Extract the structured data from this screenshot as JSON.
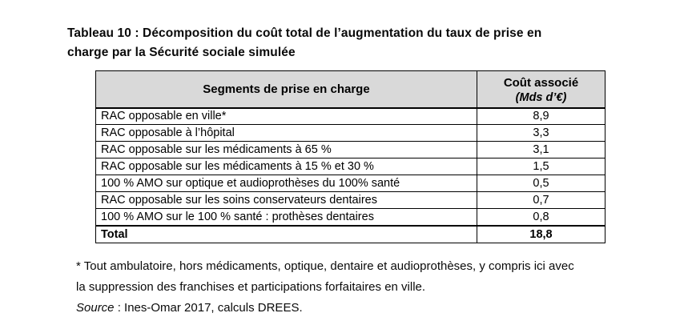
{
  "caption": {
    "line1": "Tableau 10 : Décomposition du coût total de l’augmentation du taux de prise en",
    "line2": "charge par la Sécurité sociale simulée"
  },
  "table": {
    "header": {
      "segments": "Segments de prise en charge",
      "cost_line1": "Coût associé",
      "cost_line2": "(Mds d’€)"
    },
    "rows": [
      {
        "label": "RAC opposable en ville*",
        "value": "8,9"
      },
      {
        "label": "RAC opposable à l’hôpital",
        "value": "3,3"
      },
      {
        "label": "RAC opposable sur les médicaments à 65 %",
        "value": "3,1"
      },
      {
        "label": "RAC opposable sur les médicaments à 15 % et 30 %",
        "value": "1,5"
      },
      {
        "label": "100 % AMO sur optique et audioprothèses du 100% santé",
        "value": "0,5"
      },
      {
        "label": "RAC opposable sur les soins conservateurs dentaires",
        "value": "0,7"
      },
      {
        "label": "100 % AMO sur le 100 % santé : prothèses dentaires",
        "value": "0,8"
      }
    ],
    "total": {
      "label": "Total",
      "value": "18,8"
    }
  },
  "footnotes": {
    "asterisk_line1": "* Tout ambulatoire, hors médicaments, optique, dentaire et audioprothèses, y compris ici avec",
    "asterisk_line2": "la suppression des franchises et participations forfaitaires en ville.",
    "source_label": "Source",
    "source_rest": " : Ines-Omar 2017, calculs DREES."
  },
  "colors": {
    "header_bg": "#d9d9d9",
    "border": "#000000",
    "text": "#000000",
    "background": "#ffffff"
  }
}
